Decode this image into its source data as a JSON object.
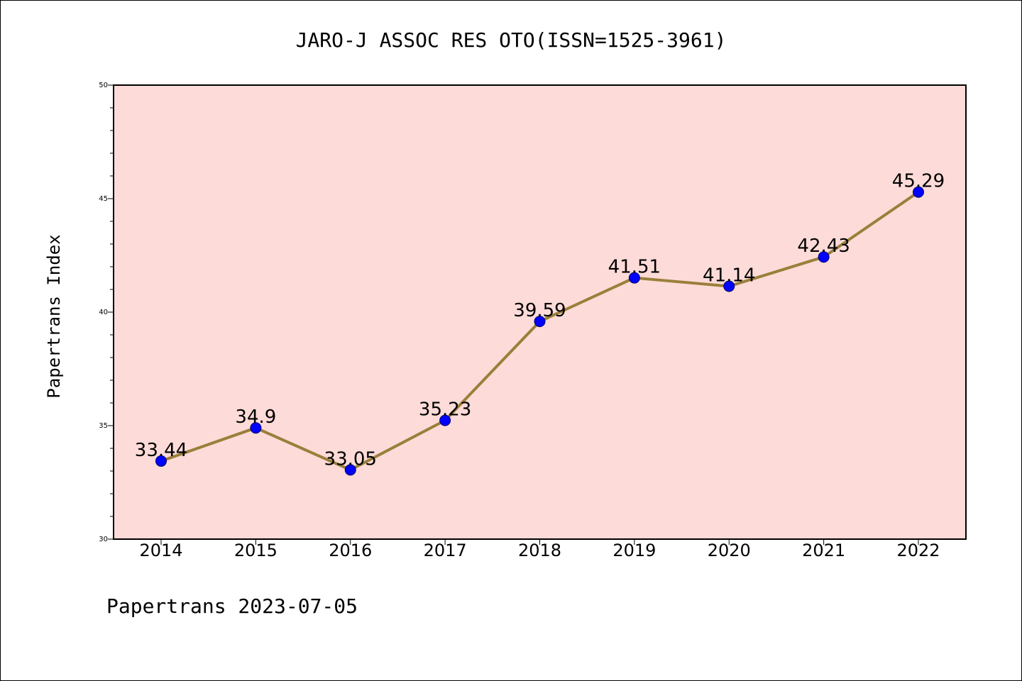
{
  "colors": {
    "plot_background": "#fddbd8",
    "line": "#9a7f3a",
    "marker": "#0000ff",
    "axes": "#000000"
  },
  "footer": "Papertrans 2023-07-05",
  "chart_data": {
    "type": "line",
    "title": "JARO-J ASSOC RES OTO(ISSN=1525-3961)",
    "xlabel": "",
    "ylabel": "Papertrans Index",
    "categories": [
      "2014",
      "2015",
      "2016",
      "2017",
      "2018",
      "2019",
      "2020",
      "2021",
      "2022"
    ],
    "series": [
      {
        "values": [
          33.44,
          34.9,
          33.05,
          35.23,
          39.59,
          41.51,
          41.14,
          42.43,
          45.29
        ],
        "labels": [
          "33.44",
          "34.9",
          "33.05",
          "35.23",
          "39.59",
          "41.51",
          "41.14",
          "42.43",
          "45.29"
        ]
      }
    ],
    "ylim": [
      30,
      50
    ],
    "yticks": [
      "30",
      "35",
      "40",
      "45",
      "50"
    ],
    "grid": false,
    "legend": "none"
  }
}
